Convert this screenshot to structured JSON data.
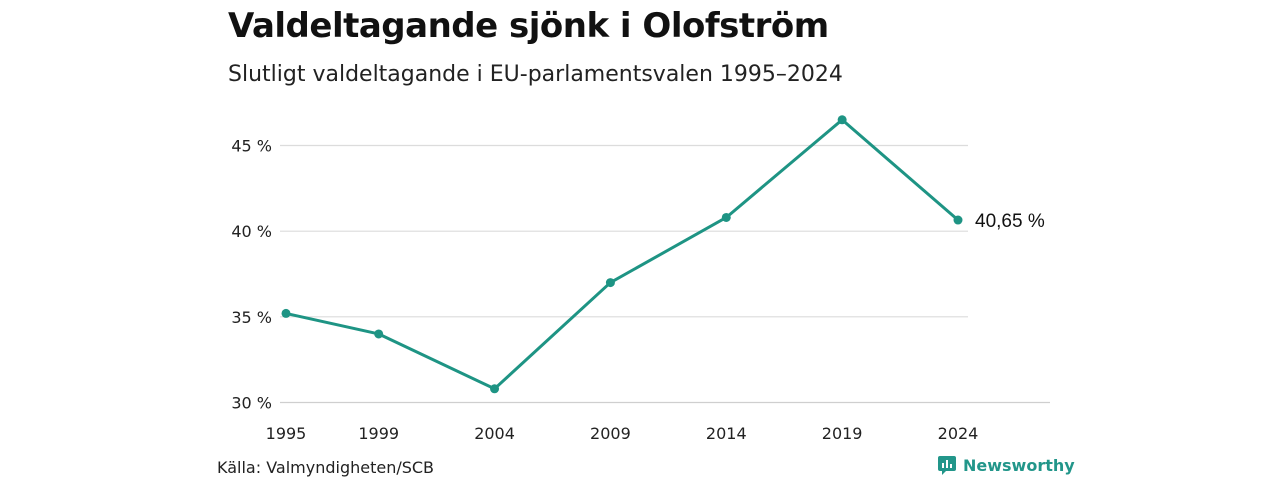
{
  "header": {
    "title": "Valdeltagande sjönk i Olofström",
    "subtitle": "Slutligt valdeltagande i EU-parlamentsvalen 1995–2024"
  },
  "footer": {
    "source": "Källa: Valmyndigheten/SCB",
    "brand": "Newsworthy",
    "brand_icon": "newsworthy-logo-icon"
  },
  "chart_data": {
    "type": "line",
    "title": "Valdeltagande sjönk i Olofström",
    "subtitle": "Slutligt valdeltagande i EU-parlamentsvalen 1995–2024",
    "xlabel": "",
    "ylabel": "",
    "categories": [
      "1995",
      "1999",
      "2004",
      "2009",
      "2014",
      "2019",
      "2024"
    ],
    "x": [
      1995,
      1999,
      2004,
      2009,
      2014,
      2019,
      2024
    ],
    "values": [
      35.2,
      34.0,
      30.8,
      37.0,
      40.8,
      46.5,
      40.65
    ],
    "ylim": [
      30,
      47
    ],
    "yticks": [
      30,
      35,
      40,
      45
    ],
    "ytick_labels": [
      "30 %",
      "35 %",
      "40 %",
      "45 %"
    ],
    "grid": "horizontal",
    "end_label": "40,65 %",
    "color": "#1e9484"
  }
}
